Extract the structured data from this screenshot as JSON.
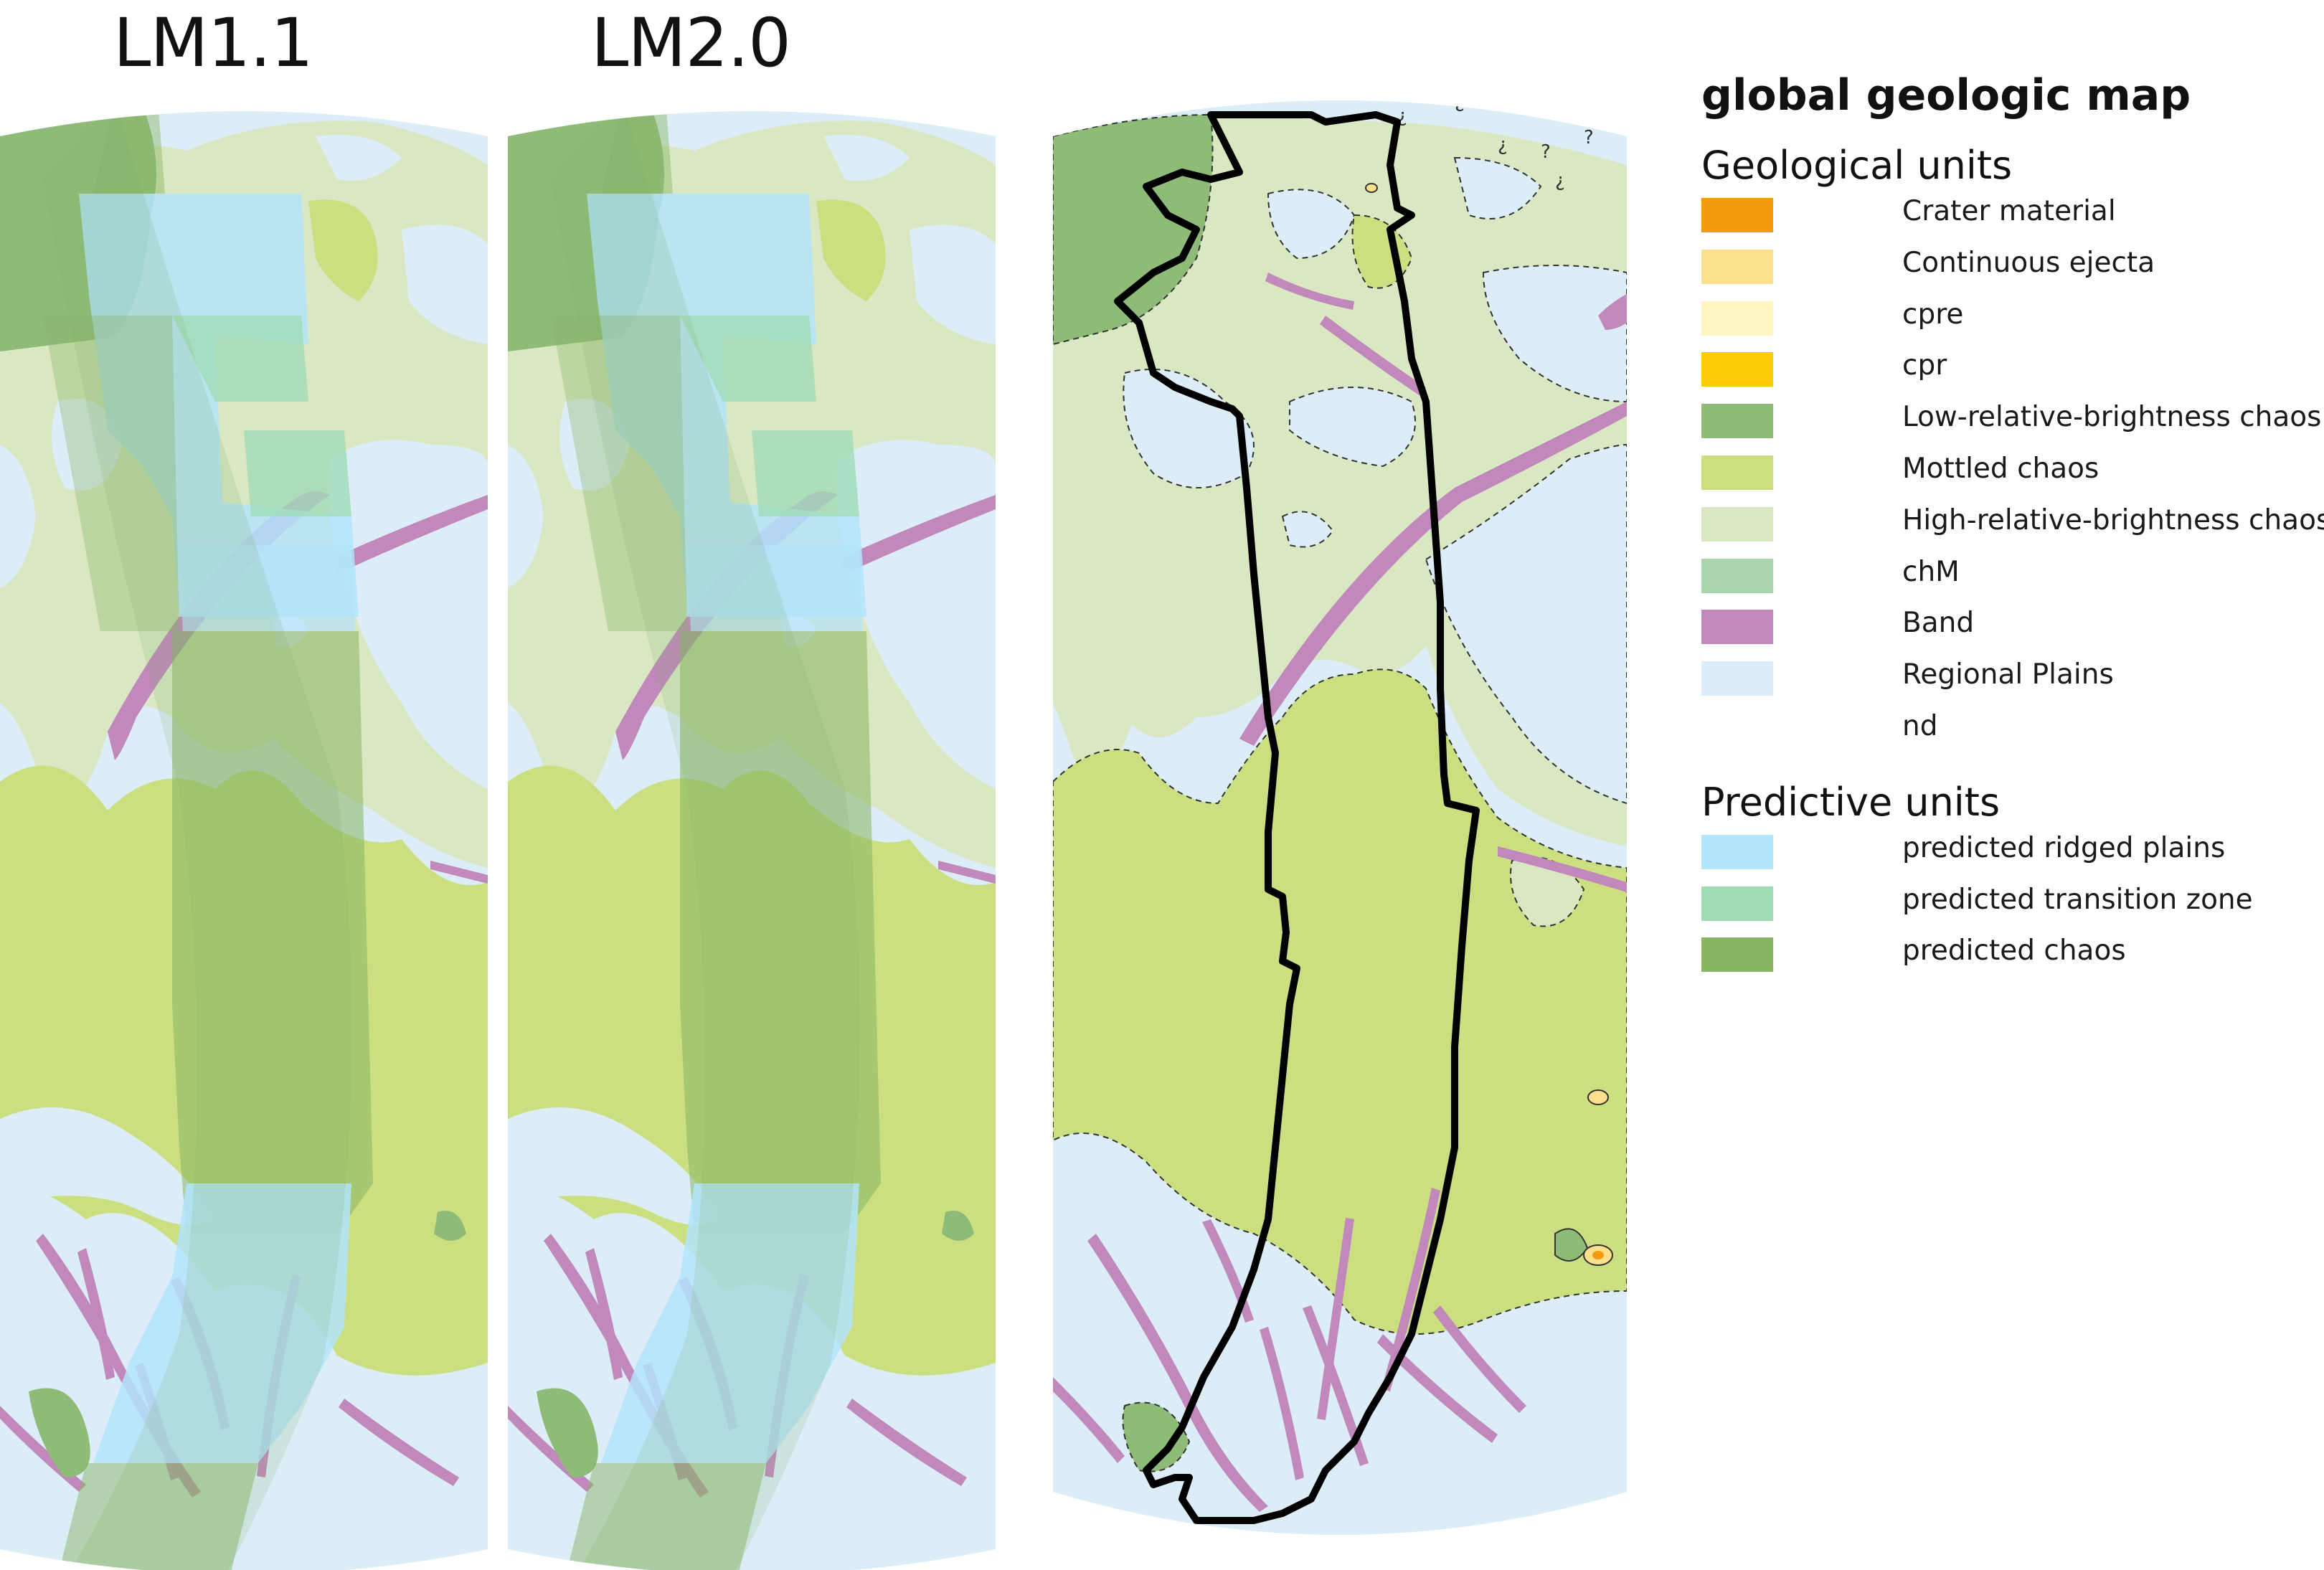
{
  "panels": [
    {
      "id": "lm11",
      "title": "LM1.1"
    },
    {
      "id": "lm20",
      "title": "LM2.0"
    },
    {
      "id": "geo",
      "title": ""
    }
  ],
  "legend": {
    "title": "global geologic map",
    "geological_heading": "Geological units",
    "geological_units": [
      {
        "label": "Crater material",
        "color": "#f5990f"
      },
      {
        "label": "Continuous ejecta",
        "color": "#fde08c"
      },
      {
        "label": "cpre",
        "color": "#fef7c4"
      },
      {
        "label": "cpr",
        "color": "#fbcb08"
      },
      {
        "label": "Low-relative-brightness chaos",
        "color": "#8fbb78"
      },
      {
        "label": "Mottled chaos",
        "color": "#cbdf80"
      },
      {
        "label": "High-relative-brightness chaos",
        "color": "#d9e7c2"
      },
      {
        "label": "chM",
        "color": "#a9d6ac"
      },
      {
        "label": "Band",
        "color": "#c188bc"
      },
      {
        "label": "Regional Plains",
        "color": "#dcedf8"
      },
      {
        "label": "nd",
        "color": "#ffffff"
      }
    ],
    "predictive_heading": "Predictive units",
    "predictive_units": [
      {
        "label": "predicted ridged plains",
        "color": "#b3e4fb"
      },
      {
        "label": "predicted transition zone",
        "color": "#a0dcb6"
      },
      {
        "label": "predicted chaos",
        "color": "#89b563"
      }
    ]
  }
}
